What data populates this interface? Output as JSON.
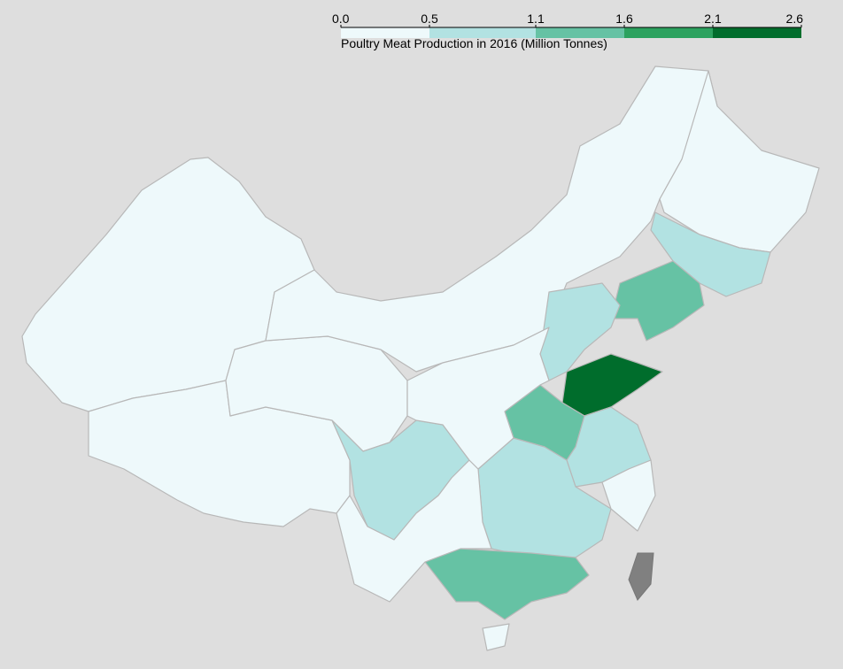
{
  "legend": {
    "title": "Poultry Meat Production in 2016 (Million Tonnes)",
    "lim": [
      0,
      2.6
    ],
    "ticks": [
      {
        "value": 0,
        "label": "0.0"
      },
      0.5,
      1.1,
      1.6,
      2.1,
      2.6
    ],
    "colors": [
      "#eef9fb",
      "#b2e2e2",
      "#66c2a4",
      "#2ca25f",
      "#006d2c"
    ],
    "no_data_color": "#808080"
  },
  "map": {
    "values": [
      0.2,
      0.2,
      0.2,
      0.2,
      0.2,
      0.8,
      1.3,
      0.8,
      2.5,
      1.3,
      0.8,
      0.8,
      0.8,
      1.3,
      0.2,
      0.2,
      0.2,
      0.2
    ]
  }
}
